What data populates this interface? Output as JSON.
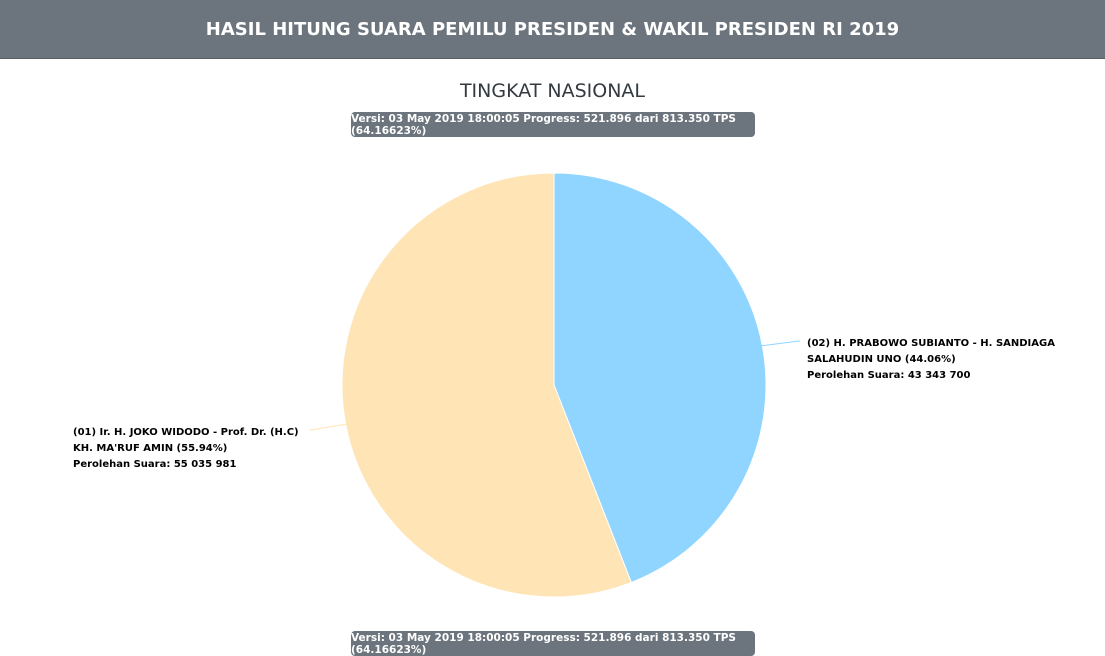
{
  "header": {
    "title": "HASIL HITUNG SUARA PEMILU PRESIDEN & WAKIL PRESIDEN RI 2019"
  },
  "subtitle": "TINGKAT NASIONAL",
  "version_badge": "Versi: 03 May 2019 18:00:05 Progress: 521.896 dari 813.350 TPS (64.16623%)",
  "chart_data": {
    "type": "pie",
    "title": "TINGKAT NASIONAL",
    "slices": [
      {
        "label_lines": [
          "(02) H. PRABOWO SUBIANTO - H. SANDIAGA",
          "SALAHUDIN UNO (44.06%)",
          "Perolehan Suara: 43 343 700"
        ],
        "percent": 44.06,
        "value": 43343700,
        "color": "#90d5ff"
      },
      {
        "label_lines": [
          "(01) Ir. H. JOKO WIDODO - Prof. Dr. (H.C)",
          "KH. MA'RUF AMIN (55.94%)",
          "Perolehan Suara: 55 035 981"
        ],
        "percent": 55.94,
        "value": 55035981,
        "color": "#ffe4b5"
      }
    ]
  }
}
